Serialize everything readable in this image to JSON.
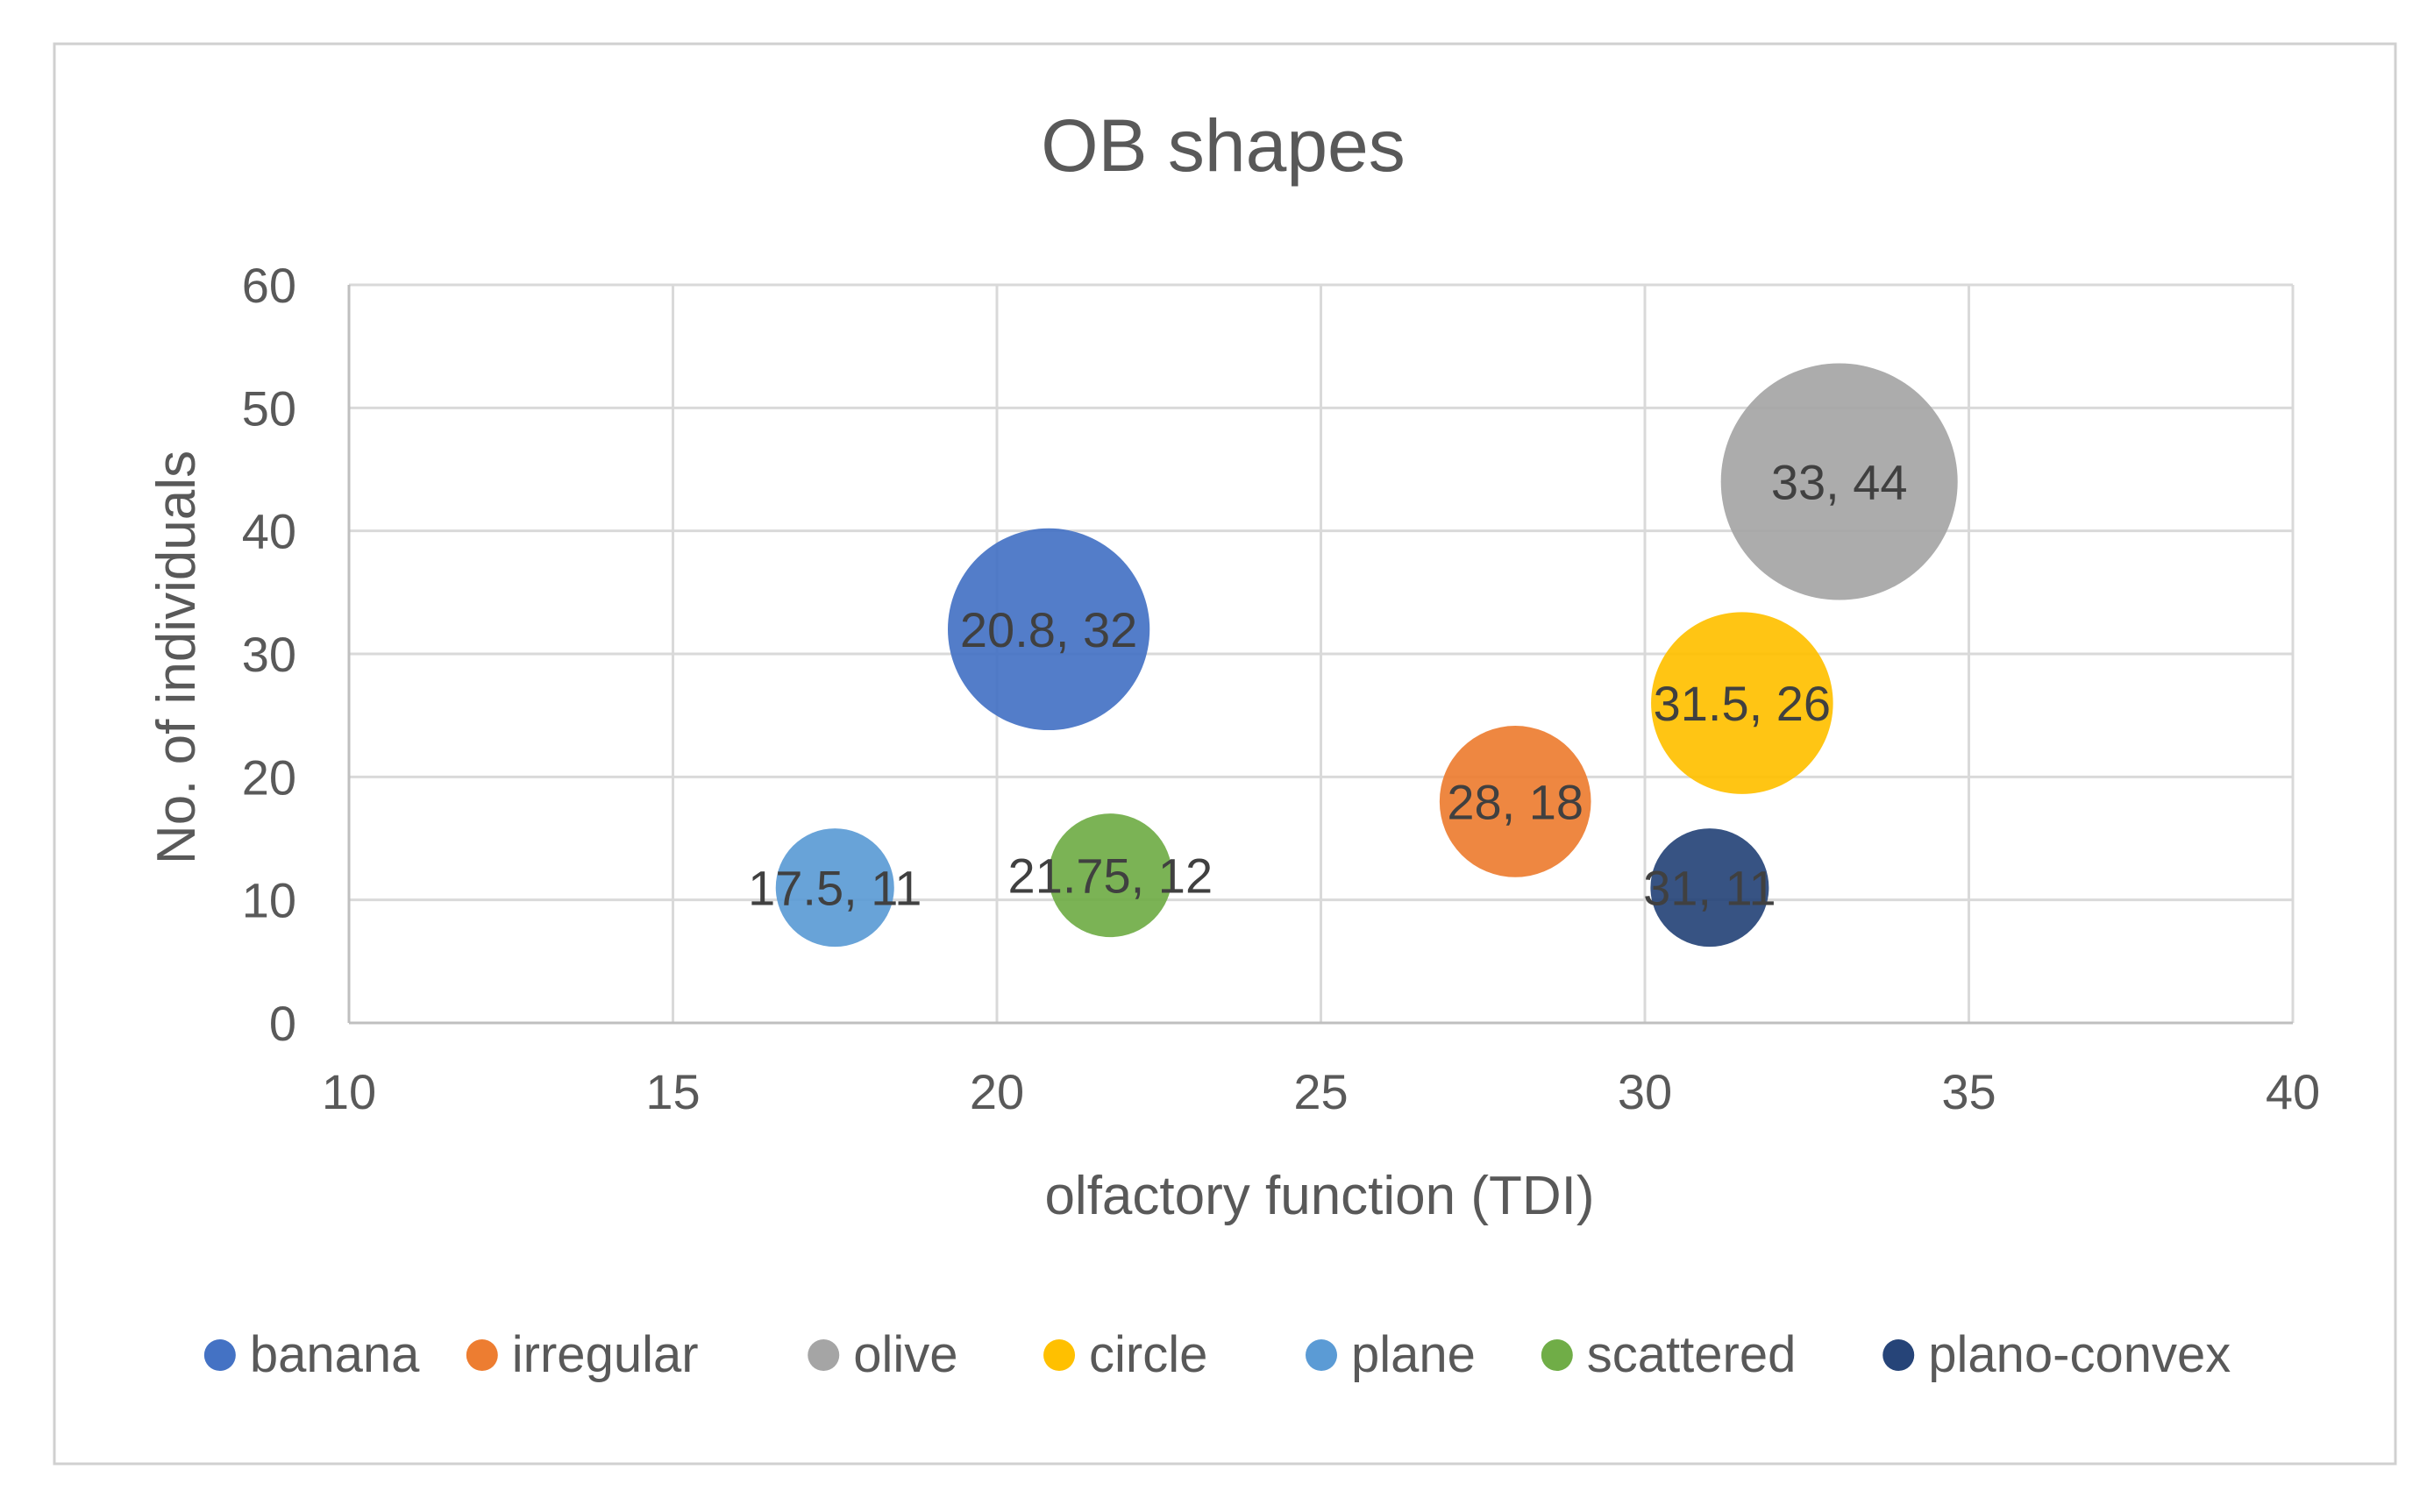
{
  "chart_data": {
    "type": "bubble",
    "title": "OB shapes",
    "xlabel": "olfactory function (TDI)",
    "ylabel": "No. of individuals",
    "xlim": [
      10,
      40
    ],
    "ylim": [
      0,
      60
    ],
    "xticks": [
      10,
      15,
      20,
      25,
      30,
      35,
      40
    ],
    "yticks": [
      0,
      10,
      20,
      30,
      40,
      50,
      60
    ],
    "grid": true,
    "legend_position": "bottom",
    "series": [
      {
        "name": "banana",
        "x": 20.8,
        "y": 32,
        "size": 32,
        "color": "#4472C4",
        "label": "20.8, 32"
      },
      {
        "name": "irregular",
        "x": 28,
        "y": 18,
        "size": 18,
        "color": "#ED7D31",
        "label": "28, 18"
      },
      {
        "name": "olive",
        "x": 33,
        "y": 44,
        "size": 44,
        "color": "#A5A5A5",
        "label": "33, 44"
      },
      {
        "name": "circle",
        "x": 31.5,
        "y": 26,
        "size": 26,
        "color": "#FFC000",
        "label": "31.5, 26"
      },
      {
        "name": "plane",
        "x": 17.5,
        "y": 11,
        "size": 11,
        "color": "#5B9BD5",
        "label": "17.5, 11"
      },
      {
        "name": "scattered",
        "x": 21.75,
        "y": 12,
        "size": 12,
        "color": "#70AD47",
        "label": "21.75, 12"
      },
      {
        "name": "plano-convex",
        "x": 31,
        "y": 11,
        "size": 11,
        "color": "#264478",
        "label": "31, 11"
      }
    ]
  }
}
